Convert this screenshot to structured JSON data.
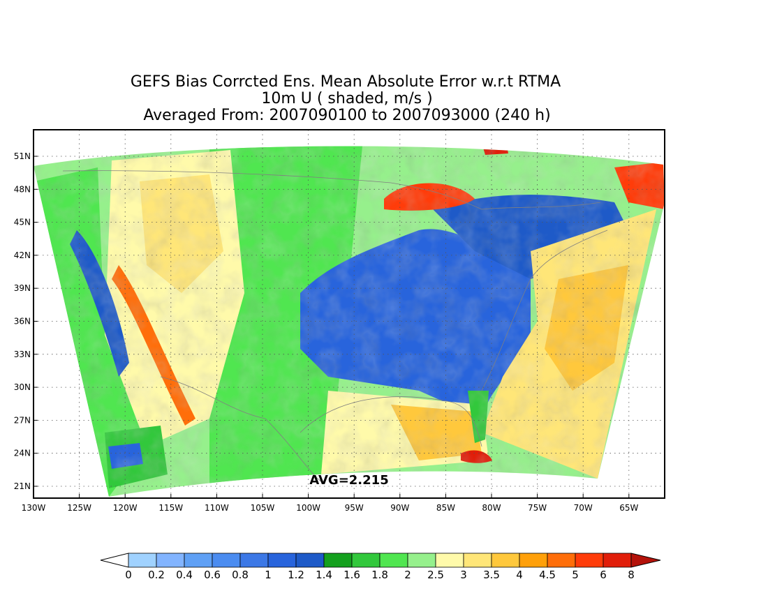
{
  "title": {
    "lines": [
      "GEFS Bias Corrcted Ens. Mean Absolute Error w.r.t RTMA",
      "10m U ( shaded, m/s )",
      "Averaged From: 2007090100 to 2007093000 (240 h)"
    ]
  },
  "map": {
    "projection": "lambert-conformal-conus",
    "lon_range": [
      -130,
      -60
    ],
    "lat_range": [
      20,
      52
    ],
    "lat_ticks": [
      "51N",
      "48N",
      "45N",
      "42N",
      "39N",
      "36N",
      "33N",
      "30N",
      "27N",
      "24N",
      "21N"
    ],
    "lon_ticks": [
      "130W",
      "125W",
      "120W",
      "115W",
      "110W",
      "105W",
      "100W",
      "95W",
      "90W",
      "85W",
      "80W",
      "75W",
      "70W",
      "65W"
    ],
    "grid": true,
    "average_label": "AVG=2.215",
    "field_regions": [
      {
        "region": "eastern-us-interior",
        "value": 1.2
      },
      {
        "region": "great-lakes-northeast",
        "value": 1.4
      },
      {
        "region": "atlantic-ocean",
        "value": 3.5
      },
      {
        "region": "gulf-of-mexico",
        "value": 3.0
      },
      {
        "region": "great-plains",
        "value": 2.0
      },
      {
        "region": "rocky-mountains",
        "value": 3.0
      },
      {
        "region": "pacific-ocean",
        "value": 1.8
      },
      {
        "region": "lake-superior",
        "value": 5.0
      },
      {
        "region": "gulf-of-st-lawrence",
        "value": 5.0
      },
      {
        "region": "central-valley-ca",
        "value": 1.2
      }
    ]
  },
  "colorbar": {
    "labels": [
      "0",
      "0.2",
      "0.4",
      "0.6",
      "0.8",
      "1",
      "1.2",
      "1.4",
      "1.6",
      "1.8",
      "2",
      "2.5",
      "3",
      "3.5",
      "4",
      "4.5",
      "5",
      "6",
      "8"
    ],
    "colors": [
      "#a0d2ff",
      "#82b4ff",
      "#5fa0f5",
      "#4b8cf0",
      "#3c78e6",
      "#2864dc",
      "#1e5ac8",
      "#14a01e",
      "#32c83c",
      "#50e650",
      "#96f08c",
      "#fffaaa",
      "#ffe678",
      "#ffc83c",
      "#ffa00a",
      "#ff6e0a",
      "#ff3c0a",
      "#e11e0a",
      "#b4120a"
    ],
    "below_color": "#ffffff",
    "above_color": "#b4120a"
  }
}
